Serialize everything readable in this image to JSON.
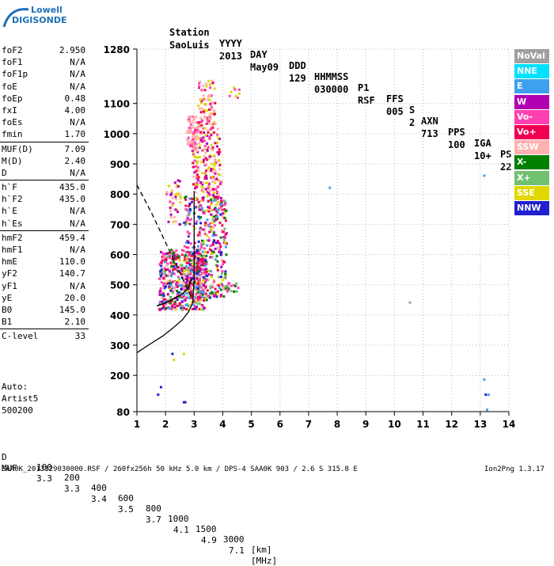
{
  "logo": {
    "line1": "Lowell",
    "line2": "DIGISONDE"
  },
  "header": {
    "labels": [
      "Station",
      "YYYY",
      "DAY",
      "DDD",
      "HHMMSS",
      "P1",
      "FFS",
      "S",
      "AXN",
      "PPS",
      "IGA",
      "PS"
    ],
    "values": [
      "SaoLuis",
      "2013",
      "May09",
      "129",
      "030000",
      "RSF",
      "005",
      "2",
      "713",
      "100",
      "10+",
      "22"
    ]
  },
  "params": [
    {
      "label": "foF2",
      "value": "2.950"
    },
    {
      "label": "foF1",
      "value": "N/A"
    },
    {
      "label": "foF1p",
      "value": "N/A"
    },
    {
      "label": "foE",
      "value": "N/A"
    },
    {
      "label": "foEp",
      "value": "0.48"
    },
    {
      "label": "fxI",
      "value": "4.00"
    },
    {
      "label": "foEs",
      "value": "N/A"
    },
    {
      "label": "fmin",
      "value": "1.70"
    },
    {
      "label": "MUF(D)",
      "value": "7.09",
      "sep": true
    },
    {
      "label": "M(D)",
      "value": "2.40"
    },
    {
      "label": "D",
      "value": "N/A"
    },
    {
      "label": "h`F",
      "value": "435.0",
      "sep": true
    },
    {
      "label": "h`F2",
      "value": "435.0"
    },
    {
      "label": "h`E",
      "value": "N/A"
    },
    {
      "label": "h`Es",
      "value": "N/A"
    },
    {
      "label": "hmF2",
      "value": "459.4",
      "sep": true
    },
    {
      "label": "hmF1",
      "value": "N/A"
    },
    {
      "label": "hmE",
      "value": "110.0"
    },
    {
      "label": "yF2",
      "value": "140.7"
    },
    {
      "label": "yF1",
      "value": "N/A"
    },
    {
      "label": "yE",
      "value": "20.0"
    },
    {
      "label": "B0",
      "value": "145.0"
    },
    {
      "label": "B1",
      "value": "2.10"
    },
    {
      "label": "C-level",
      "value": "33",
      "sep": true
    }
  ],
  "autoscaling": {
    "line1": "Auto:",
    "line2": "Artist5",
    "line3": "500200"
  },
  "legend": [
    {
      "name": "NoVal",
      "bg": "#a0a0a0",
      "fg": "#ffffff"
    },
    {
      "name": "NNE",
      "bg": "#00e0ff",
      "fg": "#ffffff"
    },
    {
      "name": "E",
      "bg": "#40a0f0",
      "fg": "#ffffff"
    },
    {
      "name": "W",
      "bg": "#b000b0",
      "fg": "#ffffff"
    },
    {
      "name": "Vo-",
      "bg": "#ff40b0",
      "fg": "#ffffff"
    },
    {
      "name": "Vo+",
      "bg": "#f00050",
      "fg": "#ffffff"
    },
    {
      "name": "SSW",
      "bg": "#ffb0b0",
      "fg": "#ffffff"
    },
    {
      "name": "X-",
      "bg": "#008000",
      "fg": "#ffffff"
    },
    {
      "name": "X+",
      "bg": "#70c070",
      "fg": "#ffffff"
    },
    {
      "name": "SSE",
      "bg": "#e0d800",
      "fg": "#ffffff"
    },
    {
      "name": "NNW",
      "bg": "#2020d0",
      "fg": "#ffffff"
    }
  ],
  "footer": {
    "d_label": "D",
    "d_values": [
      "100",
      "200",
      "400",
      "600",
      "800",
      "1000",
      "1500",
      "3000"
    ],
    "d_unit": "[km]",
    "muf_label": "MUF",
    "muf_values": [
      "3.3",
      "3.3",
      "3.4",
      "3.5",
      "3.7",
      "4.1",
      "4.9",
      "7.1"
    ],
    "muf_unit": "[MHz]",
    "file_info": "SAA0K_2013129030000.RSF / 260fx256h 50 kHz 5.0 km / DPS-4 SAA0K 903 / 2.6 S 315.8 E",
    "version": "Ion2Png 1.3.17"
  },
  "chart_data": {
    "type": "scatter",
    "xlim": [
      1,
      14
    ],
    "ylim": [
      80,
      1280
    ],
    "x_ticks": [
      1,
      2,
      3,
      4,
      5,
      6,
      7,
      8,
      9,
      10,
      11,
      12,
      13,
      14
    ],
    "y_ticks": [
      80,
      200,
      300,
      400,
      500,
      600,
      700,
      800,
      900,
      1000,
      1100,
      1280
    ],
    "x_tick_labels": [
      "1",
      "2",
      "3",
      "4",
      "5",
      "6",
      "7",
      "8",
      "9",
      "10",
      "11",
      "12",
      "13",
      "14"
    ],
    "y_tick_labels": [
      "80",
      "200",
      "300",
      "400",
      "500",
      "600",
      "700",
      "800",
      "900",
      "1000",
      "1100",
      "1280"
    ],
    "grid": true,
    "traces": {
      "trace_echo_region": "scattered ionogram echoes roughly 1.7-4.4 MHz, 420-1200 km",
      "profile_solid": [
        [
          1.0,
          275
        ],
        [
          1.4,
          300
        ],
        [
          1.9,
          330
        ],
        [
          2.3,
          360
        ],
        [
          2.6,
          385
        ],
        [
          2.8,
          410
        ],
        [
          2.95,
          440
        ],
        [
          3.0,
          520
        ],
        [
          3.0,
          650
        ],
        [
          3.0,
          780
        ],
        [
          3.0,
          810
        ]
      ],
      "profile_dashed": [
        [
          1.0,
          830
        ],
        [
          1.5,
          740
        ],
        [
          2.0,
          640
        ],
        [
          2.4,
          560
        ],
        [
          2.7,
          500
        ],
        [
          2.9,
          460
        ]
      ],
      "f_trace": [
        [
          1.7,
          430
        ],
        [
          2.0,
          440
        ],
        [
          2.3,
          455
        ],
        [
          2.6,
          470
        ],
        [
          2.8,
          490
        ],
        [
          2.9,
          520
        ]
      ]
    },
    "isolated_points": [
      {
        "x": 7.7,
        "y": 825,
        "color": "#40a0f0"
      },
      {
        "x": 13.1,
        "y": 865,
        "color": "#40a0f0"
      },
      {
        "x": 13.1,
        "y": 190,
        "color": "#40a0f0"
      },
      {
        "x": 13.15,
        "y": 140,
        "color": "#2020d0"
      },
      {
        "x": 13.25,
        "y": 140,
        "color": "#40a0f0"
      },
      {
        "x": 13.2,
        "y": 90,
        "color": "#40a0f0"
      },
      {
        "x": 10.5,
        "y": 445,
        "color": "#a0a0a0"
      },
      {
        "x": 1.7,
        "y": 140,
        "color": "#2020d0"
      },
      {
        "x": 1.8,
        "y": 165,
        "color": "#2020d0"
      },
      {
        "x": 2.6,
        "y": 115,
        "color": "#2020d0"
      },
      {
        "x": 2.65,
        "y": 115,
        "color": "#2020d0"
      },
      {
        "x": 2.2,
        "y": 275,
        "color": "#2020d0"
      },
      {
        "x": 2.25,
        "y": 255,
        "color": "#e0d800"
      },
      {
        "x": 2.6,
        "y": 275,
        "color": "#e0d800"
      }
    ]
  }
}
